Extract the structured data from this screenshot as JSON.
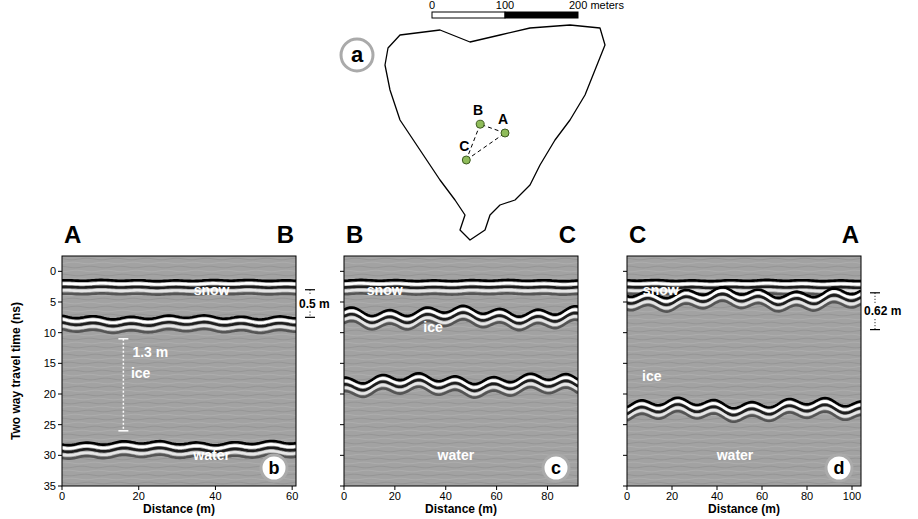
{
  "map": {
    "panel": "a",
    "scale_bar": {
      "ticks": [
        0,
        100,
        {
          "value": 200,
          "label": "200 meters"
        }
      ]
    },
    "points": [
      {
        "label": "A",
        "x": 100,
        "y": 163
      },
      {
        "label": "B",
        "x": 66,
        "y": 151
      },
      {
        "label": "C",
        "x": 47,
        "y": 200
      }
    ],
    "profiles": [
      [
        "A",
        "B"
      ],
      [
        "B",
        "C"
      ],
      [
        "C",
        "A"
      ]
    ]
  },
  "chart_data": [
    {
      "type": "radargram",
      "panel": "b",
      "start": "A",
      "end": "B",
      "x_label": "Distance (m)",
      "y_label": "Two way travel time (ns)",
      "xlim": [
        0,
        61
      ],
      "xticks": [
        0,
        20,
        40,
        60
      ],
      "ylim": [
        -2.5,
        35
      ],
      "yticks": [
        0,
        5,
        10,
        15,
        20,
        25,
        30,
        35
      ],
      "reflector_times": [
        1.5,
        7.5,
        28
      ],
      "layer_labels": [
        {
          "text": "snow",
          "x": 39,
          "y": 3
        },
        {
          "text": "ice",
          "x": 20.5,
          "y": 16.5
        },
        {
          "text": "water",
          "x": 39,
          "y": 30
        }
      ],
      "measurements": [
        {
          "label": "0.5 m",
          "from": 3,
          "to": 7.5,
          "side": "right"
        },
        {
          "label": "1.3 m",
          "from": 11,
          "to": 26,
          "x": 16,
          "side": "inside"
        }
      ]
    },
    {
      "type": "radargram",
      "panel": "c",
      "start": "B",
      "end": "C",
      "x_label": "Distance (m)",
      "tick_labels": "x",
      "xlim": [
        0,
        92
      ],
      "xticks": [
        0,
        20,
        40,
        60,
        80
      ],
      "ylim": [
        -2.5,
        35
      ],
      "yticks": [
        0,
        5,
        10,
        15,
        20,
        25,
        30,
        35
      ],
      "reflector_times": [
        1.5,
        6.5,
        17.5
      ],
      "layer_labels": [
        {
          "text": "snow",
          "x": 16,
          "y": 3
        },
        {
          "text": "ice",
          "x": 35,
          "y": 9
        },
        {
          "text": "water",
          "x": 44,
          "y": 30
        }
      ],
      "measurements": []
    },
    {
      "type": "radargram",
      "panel": "d",
      "start": "C",
      "end": "A",
      "x_label": "Distance (m)",
      "tick_labels": "x",
      "xlim": [
        0,
        104
      ],
      "xticks": [
        0,
        20,
        40,
        60,
        80,
        100
      ],
      "ylim": [
        -2.5,
        35
      ],
      "yticks": [
        0,
        5,
        10,
        15,
        20,
        25,
        30,
        35
      ],
      "reflector_times": [
        1.5,
        3.5,
        21.5
      ],
      "layer_labels": [
        {
          "text": "snow",
          "x": 15,
          "y": 3
        },
        {
          "text": "ice",
          "x": 11,
          "y": 17
        },
        {
          "text": "water",
          "x": 48,
          "y": 30
        }
      ],
      "measurements": [
        {
          "label": "0.62 m",
          "from": 3.5,
          "to": 9.5,
          "side": "right"
        }
      ]
    }
  ]
}
